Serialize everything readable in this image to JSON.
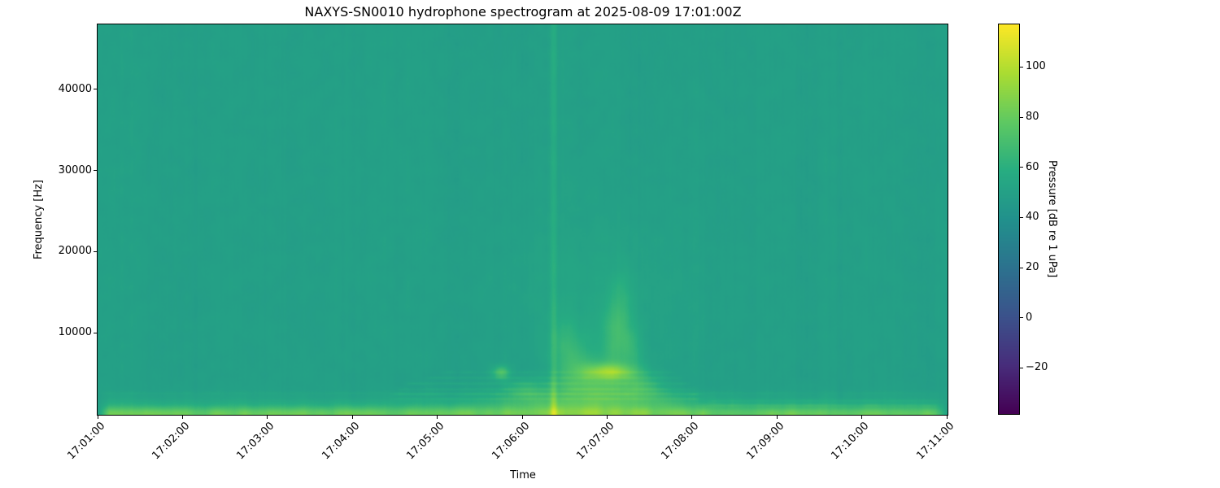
{
  "chart_data": {
    "type": "heatmap",
    "subtype": "spectrogram",
    "title": "NAXYS-SN0010 hydrophone spectrogram at 2025-08-09 17:01:00Z",
    "xlabel": "Time",
    "ylabel": "Frequency [Hz]",
    "x_tick_labels": [
      "17:01:00",
      "17:02:00",
      "17:03:00",
      "17:04:00",
      "17:05:00",
      "17:06:00",
      "17:07:00",
      "17:08:00",
      "17:09:00",
      "17:10:00",
      "17:11:00"
    ],
    "x_tick_seconds": [
      0,
      60,
      120,
      180,
      240,
      300,
      360,
      420,
      480,
      540,
      600
    ],
    "time_span_seconds": 600,
    "y_tick_labels": [
      "10000",
      "20000",
      "30000",
      "40000"
    ],
    "y_tick_values": [
      10000,
      20000,
      30000,
      40000
    ],
    "freq_range_hz": [
      0,
      48000
    ],
    "colorbar": {
      "label": "Pressure [dB re 1 uPa]",
      "tick_labels": [
        "100",
        "80",
        "60",
        "40",
        "20",
        "0",
        "−20"
      ],
      "tick_values": [
        100,
        80,
        60,
        40,
        20,
        0,
        -20
      ],
      "vmin": -38,
      "vmax": 117,
      "colormap": "viridis"
    },
    "background_level_db": 49.5,
    "texture": {
      "seed": 11,
      "column_striping_db": 0.9,
      "blotch_db": 1.1,
      "fine_noise_db": 0.45
    },
    "features": [
      {
        "kind": "hband",
        "label": "broadband low-frequency noise floor",
        "f_hz": 0,
        "f_sigma_hz": 650,
        "t_start_s": 0,
        "t_end_s": 600,
        "amp_db": 27
      },
      {
        "kind": "hband",
        "label": "low-frequency shoulder",
        "f_hz": 1200,
        "f_sigma_hz": 900,
        "t_start_s": 0,
        "t_end_s": 600,
        "amp_db": 5.5
      },
      {
        "kind": "hline",
        "label": "persistent faint tonal",
        "f_hz": 2600,
        "width_hz": 300,
        "t_start_s": 0,
        "t_end_s": 600,
        "amp_db": 2
      },
      {
        "kind": "hline",
        "label": "event-band tonal",
        "f_hz": 1900,
        "width_hz": 260,
        "t_start_s": 205,
        "t_end_s": 430,
        "amp_db": 4
      },
      {
        "kind": "hline",
        "label": "event-band tonal",
        "f_hz": 2500,
        "width_hz": 260,
        "t_start_s": 205,
        "t_end_s": 430,
        "amp_db": 4.5
      },
      {
        "kind": "hline",
        "label": "event-band tonal",
        "f_hz": 3100,
        "width_hz": 280,
        "t_start_s": 210,
        "t_end_s": 425,
        "amp_db": 4.5
      },
      {
        "kind": "hline",
        "label": "event-band tonal",
        "f_hz": 3800,
        "width_hz": 280,
        "t_start_s": 215,
        "t_end_s": 420,
        "amp_db": 4
      },
      {
        "kind": "hline",
        "label": "event-band tonal",
        "f_hz": 4500,
        "width_hz": 280,
        "t_start_s": 230,
        "t_end_s": 415,
        "amp_db": 3.5
      },
      {
        "kind": "hline",
        "label": "event-band tonal",
        "f_hz": 5200,
        "width_hz": 280,
        "t_start_s": 240,
        "t_end_s": 410,
        "amp_db": 3
      },
      {
        "kind": "hline",
        "label": "late faint tonal",
        "f_hz": 1100,
        "width_hz": 320,
        "t_start_s": 420,
        "t_end_s": 600,
        "amp_db": 3.5
      },
      {
        "kind": "hline",
        "label": "late faint tonal",
        "f_hz": 1700,
        "width_hz": 280,
        "t_start_s": 430,
        "t_end_s": 600,
        "amp_db": 2.5
      },
      {
        "kind": "vline",
        "label": "broadband transient at 17:06:22",
        "t_s": 322,
        "width_s": 1.6,
        "amp_db": 9,
        "extra_below_hz": 6000,
        "extra_amp_db": 11
      },
      {
        "kind": "blob",
        "label": "tonal burst at 17:05:45",
        "t_s": 285,
        "f_hz": 5200,
        "dt_s": 4,
        "df_hz": 600,
        "amp_db": 22
      },
      {
        "kind": "blob",
        "t_s": 300,
        "f_hz": 3000,
        "dt_s": 10,
        "df_hz": 900,
        "amp_db": 8
      },
      {
        "kind": "blob",
        "t_s": 318,
        "f_hz": 2200,
        "dt_s": 25,
        "df_hz": 1400,
        "amp_db": 8
      },
      {
        "kind": "blob",
        "t_s": 328,
        "f_hz": 8500,
        "dt_s": 7,
        "df_hz": 2600,
        "amp_db": 9
      },
      {
        "kind": "blob",
        "t_s": 340,
        "f_hz": 6500,
        "dt_s": 9,
        "df_hz": 2800,
        "amp_db": 11
      },
      {
        "kind": "blob",
        "t_s": 352,
        "f_hz": 4600,
        "dt_s": 16,
        "df_hz": 1600,
        "amp_db": 13
      },
      {
        "kind": "blob",
        "label": "loudest event near 17:07:00",
        "t_s": 361,
        "f_hz": 5300,
        "dt_s": 12,
        "df_hz": 650,
        "amp_db": 26
      },
      {
        "kind": "blob",
        "t_s": 360,
        "f_hz": 2600,
        "dt_s": 20,
        "df_hz": 1500,
        "amp_db": 12
      },
      {
        "kind": "blob",
        "t_s": 364,
        "f_hz": 9500,
        "dt_s": 6,
        "df_hz": 3200,
        "amp_db": 13
      },
      {
        "kind": "blob",
        "t_s": 371,
        "f_hz": 12500,
        "dt_s": 5,
        "df_hz": 3600,
        "amp_db": 9
      },
      {
        "kind": "blob",
        "t_s": 377,
        "f_hz": 7800,
        "dt_s": 6,
        "df_hz": 2200,
        "amp_db": 11
      },
      {
        "kind": "blob",
        "label": "mid-frequency haze",
        "t_s": 350,
        "f_hz": 15000,
        "dt_s": 45,
        "df_hz": 6500,
        "amp_db": 3.5
      },
      {
        "kind": "blob",
        "t_s": 345,
        "f_hz": 900,
        "dt_s": 55,
        "df_hz": 1100,
        "amp_db": 9
      },
      {
        "kind": "blob",
        "t_s": 383,
        "f_hz": 3600,
        "dt_s": 10,
        "df_hz": 1200,
        "amp_db": 12
      },
      {
        "kind": "blob",
        "t_s": 398,
        "f_hz": 2000,
        "dt_s": 18,
        "df_hz": 1000,
        "amp_db": 6
      }
    ]
  }
}
